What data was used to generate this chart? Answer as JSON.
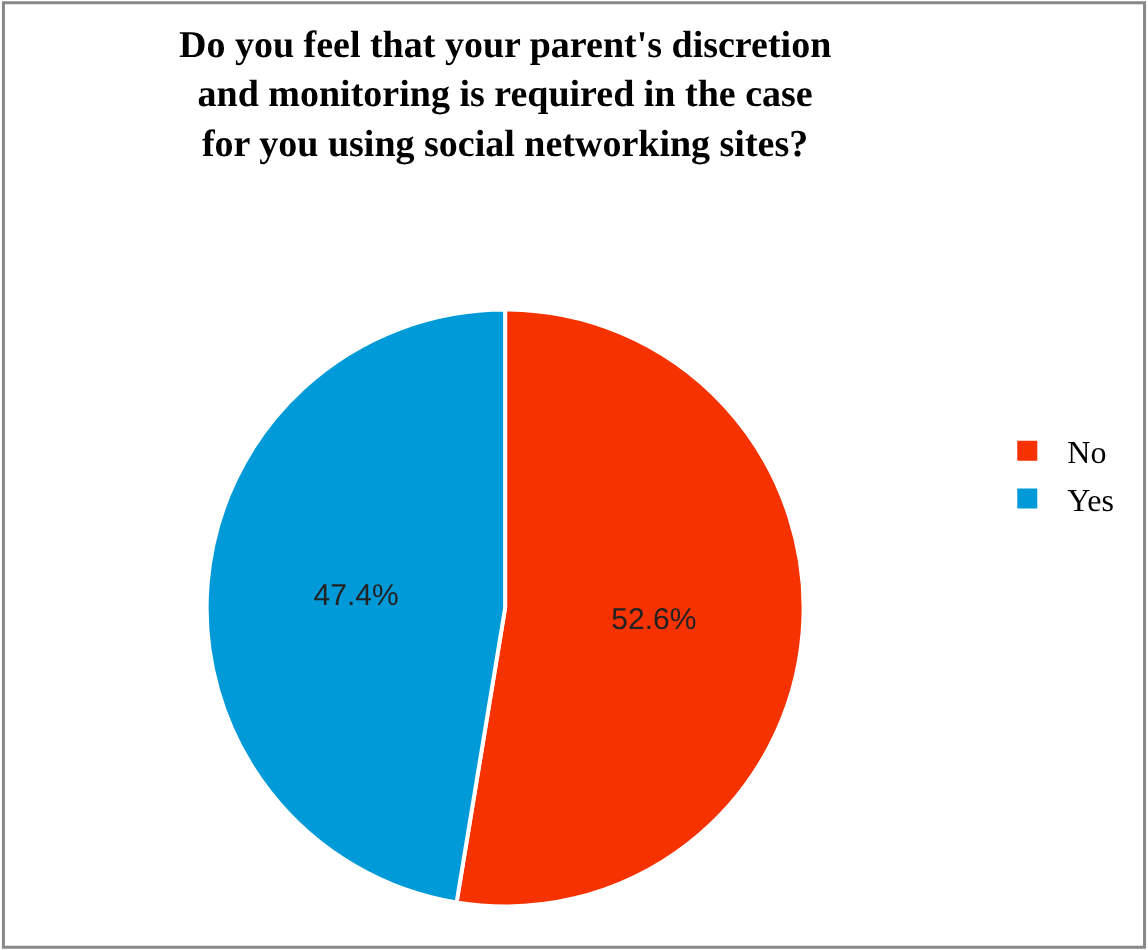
{
  "chart_data": {
    "type": "pie",
    "title": "Do you feel that your parent's discretion\nand monitoring is required in the case\nfor you using social networking sites?",
    "categories": [
      "No",
      "Yes"
    ],
    "values": [
      52.6,
      47.4
    ],
    "colors": [
      "#f53200",
      "#009ad9"
    ],
    "value_labels": [
      "52.6%",
      "47.4%"
    ],
    "legend": "right"
  }
}
